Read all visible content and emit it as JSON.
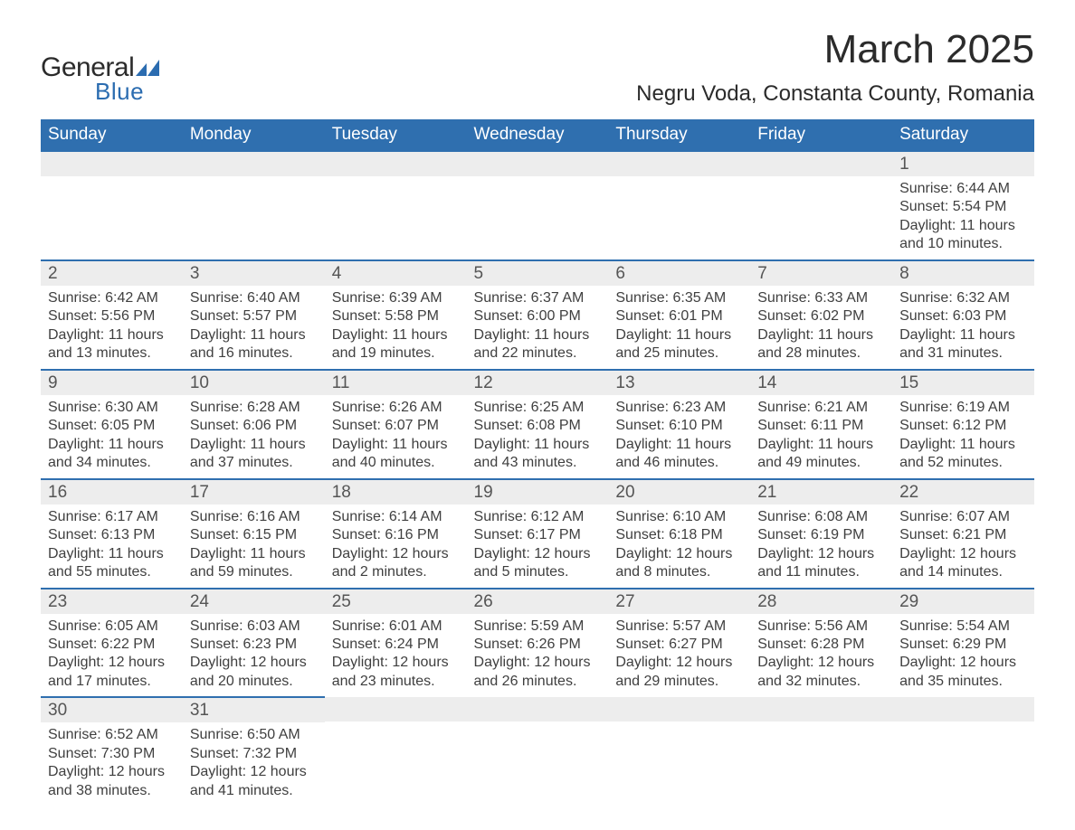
{
  "logo": {
    "text1": "General",
    "text2": "Blue"
  },
  "title": "March 2025",
  "location": "Negru Voda, Constanta County, Romania",
  "colors": {
    "header_bg": "#2f6faf",
    "header_text": "#ffffff",
    "daynum_bg": "#ededed",
    "body_text": "#3f3f3f",
    "logo_blue": "#2b6cb0"
  },
  "day_headers": [
    "Sunday",
    "Monday",
    "Tuesday",
    "Wednesday",
    "Thursday",
    "Friday",
    "Saturday"
  ],
  "weeks": [
    [
      {
        "day": "",
        "sunrise": "",
        "sunset": "",
        "daylight": ""
      },
      {
        "day": "",
        "sunrise": "",
        "sunset": "",
        "daylight": ""
      },
      {
        "day": "",
        "sunrise": "",
        "sunset": "",
        "daylight": ""
      },
      {
        "day": "",
        "sunrise": "",
        "sunset": "",
        "daylight": ""
      },
      {
        "day": "",
        "sunrise": "",
        "sunset": "",
        "daylight": ""
      },
      {
        "day": "",
        "sunrise": "",
        "sunset": "",
        "daylight": ""
      },
      {
        "day": "1",
        "sunrise": "Sunrise: 6:44 AM",
        "sunset": "Sunset: 5:54 PM",
        "daylight": "Daylight: 11 hours and 10 minutes."
      }
    ],
    [
      {
        "day": "2",
        "sunrise": "Sunrise: 6:42 AM",
        "sunset": "Sunset: 5:56 PM",
        "daylight": "Daylight: 11 hours and 13 minutes."
      },
      {
        "day": "3",
        "sunrise": "Sunrise: 6:40 AM",
        "sunset": "Sunset: 5:57 PM",
        "daylight": "Daylight: 11 hours and 16 minutes."
      },
      {
        "day": "4",
        "sunrise": "Sunrise: 6:39 AM",
        "sunset": "Sunset: 5:58 PM",
        "daylight": "Daylight: 11 hours and 19 minutes."
      },
      {
        "day": "5",
        "sunrise": "Sunrise: 6:37 AM",
        "sunset": "Sunset: 6:00 PM",
        "daylight": "Daylight: 11 hours and 22 minutes."
      },
      {
        "day": "6",
        "sunrise": "Sunrise: 6:35 AM",
        "sunset": "Sunset: 6:01 PM",
        "daylight": "Daylight: 11 hours and 25 minutes."
      },
      {
        "day": "7",
        "sunrise": "Sunrise: 6:33 AM",
        "sunset": "Sunset: 6:02 PM",
        "daylight": "Daylight: 11 hours and 28 minutes."
      },
      {
        "day": "8",
        "sunrise": "Sunrise: 6:32 AM",
        "sunset": "Sunset: 6:03 PM",
        "daylight": "Daylight: 11 hours and 31 minutes."
      }
    ],
    [
      {
        "day": "9",
        "sunrise": "Sunrise: 6:30 AM",
        "sunset": "Sunset: 6:05 PM",
        "daylight": "Daylight: 11 hours and 34 minutes."
      },
      {
        "day": "10",
        "sunrise": "Sunrise: 6:28 AM",
        "sunset": "Sunset: 6:06 PM",
        "daylight": "Daylight: 11 hours and 37 minutes."
      },
      {
        "day": "11",
        "sunrise": "Sunrise: 6:26 AM",
        "sunset": "Sunset: 6:07 PM",
        "daylight": "Daylight: 11 hours and 40 minutes."
      },
      {
        "day": "12",
        "sunrise": "Sunrise: 6:25 AM",
        "sunset": "Sunset: 6:08 PM",
        "daylight": "Daylight: 11 hours and 43 minutes."
      },
      {
        "day": "13",
        "sunrise": "Sunrise: 6:23 AM",
        "sunset": "Sunset: 6:10 PM",
        "daylight": "Daylight: 11 hours and 46 minutes."
      },
      {
        "day": "14",
        "sunrise": "Sunrise: 6:21 AM",
        "sunset": "Sunset: 6:11 PM",
        "daylight": "Daylight: 11 hours and 49 minutes."
      },
      {
        "day": "15",
        "sunrise": "Sunrise: 6:19 AM",
        "sunset": "Sunset: 6:12 PM",
        "daylight": "Daylight: 11 hours and 52 minutes."
      }
    ],
    [
      {
        "day": "16",
        "sunrise": "Sunrise: 6:17 AM",
        "sunset": "Sunset: 6:13 PM",
        "daylight": "Daylight: 11 hours and 55 minutes."
      },
      {
        "day": "17",
        "sunrise": "Sunrise: 6:16 AM",
        "sunset": "Sunset: 6:15 PM",
        "daylight": "Daylight: 11 hours and 59 minutes."
      },
      {
        "day": "18",
        "sunrise": "Sunrise: 6:14 AM",
        "sunset": "Sunset: 6:16 PM",
        "daylight": "Daylight: 12 hours and 2 minutes."
      },
      {
        "day": "19",
        "sunrise": "Sunrise: 6:12 AM",
        "sunset": "Sunset: 6:17 PM",
        "daylight": "Daylight: 12 hours and 5 minutes."
      },
      {
        "day": "20",
        "sunrise": "Sunrise: 6:10 AM",
        "sunset": "Sunset: 6:18 PM",
        "daylight": "Daylight: 12 hours and 8 minutes."
      },
      {
        "day": "21",
        "sunrise": "Sunrise: 6:08 AM",
        "sunset": "Sunset: 6:19 PM",
        "daylight": "Daylight: 12 hours and 11 minutes."
      },
      {
        "day": "22",
        "sunrise": "Sunrise: 6:07 AM",
        "sunset": "Sunset: 6:21 PM",
        "daylight": "Daylight: 12 hours and 14 minutes."
      }
    ],
    [
      {
        "day": "23",
        "sunrise": "Sunrise: 6:05 AM",
        "sunset": "Sunset: 6:22 PM",
        "daylight": "Daylight: 12 hours and 17 minutes."
      },
      {
        "day": "24",
        "sunrise": "Sunrise: 6:03 AM",
        "sunset": "Sunset: 6:23 PM",
        "daylight": "Daylight: 12 hours and 20 minutes."
      },
      {
        "day": "25",
        "sunrise": "Sunrise: 6:01 AM",
        "sunset": "Sunset: 6:24 PM",
        "daylight": "Daylight: 12 hours and 23 minutes."
      },
      {
        "day": "26",
        "sunrise": "Sunrise: 5:59 AM",
        "sunset": "Sunset: 6:26 PM",
        "daylight": "Daylight: 12 hours and 26 minutes."
      },
      {
        "day": "27",
        "sunrise": "Sunrise: 5:57 AM",
        "sunset": "Sunset: 6:27 PM",
        "daylight": "Daylight: 12 hours and 29 minutes."
      },
      {
        "day": "28",
        "sunrise": "Sunrise: 5:56 AM",
        "sunset": "Sunset: 6:28 PM",
        "daylight": "Daylight: 12 hours and 32 minutes."
      },
      {
        "day": "29",
        "sunrise": "Sunrise: 5:54 AM",
        "sunset": "Sunset: 6:29 PM",
        "daylight": "Daylight: 12 hours and 35 minutes."
      }
    ],
    [
      {
        "day": "30",
        "sunrise": "Sunrise: 6:52 AM",
        "sunset": "Sunset: 7:30 PM",
        "daylight": "Daylight: 12 hours and 38 minutes."
      },
      {
        "day": "31",
        "sunrise": "Sunrise: 6:50 AM",
        "sunset": "Sunset: 7:32 PM",
        "daylight": "Daylight: 12 hours and 41 minutes."
      },
      {
        "day": "",
        "sunrise": "",
        "sunset": "",
        "daylight": ""
      },
      {
        "day": "",
        "sunrise": "",
        "sunset": "",
        "daylight": ""
      },
      {
        "day": "",
        "sunrise": "",
        "sunset": "",
        "daylight": ""
      },
      {
        "day": "",
        "sunrise": "",
        "sunset": "",
        "daylight": ""
      },
      {
        "day": "",
        "sunrise": "",
        "sunset": "",
        "daylight": ""
      }
    ]
  ]
}
